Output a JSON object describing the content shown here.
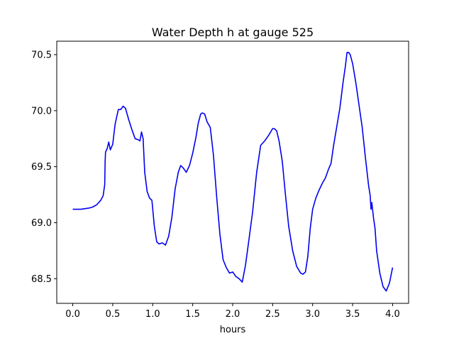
{
  "chart_data": {
    "type": "line",
    "title": "Water Depth h at gauge 525",
    "xlabel": "hours",
    "ylabel": "",
    "xlim": [
      -0.2,
      4.2
    ],
    "ylim": [
      68.28,
      70.62
    ],
    "xticks": [
      0.0,
      0.5,
      1.0,
      1.5,
      2.0,
      2.5,
      3.0,
      3.5,
      4.0
    ],
    "xtick_labels": [
      "0.0",
      "0.5",
      "1.0",
      "1.5",
      "2.0",
      "2.5",
      "3.0",
      "3.5",
      "4.0"
    ],
    "yticks": [
      68.5,
      69.0,
      69.5,
      70.0,
      70.5
    ],
    "ytick_labels": [
      "68.5",
      "69.0",
      "69.5",
      "70.0",
      "70.5"
    ],
    "grid": false,
    "series": [
      {
        "color": "#0000ee",
        "x": [
          0.0,
          0.1,
          0.2,
          0.25,
          0.3,
          0.35,
          0.38,
          0.4,
          0.405,
          0.41,
          0.43,
          0.45,
          0.47,
          0.5,
          0.53,
          0.57,
          0.6,
          0.63,
          0.66,
          0.7,
          0.74,
          0.78,
          0.82,
          0.84,
          0.86,
          0.88,
          0.9,
          0.93,
          0.96,
          0.99,
          1.02,
          1.05,
          1.08,
          1.12,
          1.16,
          1.2,
          1.24,
          1.28,
          1.32,
          1.35,
          1.38,
          1.42,
          1.46,
          1.5,
          1.54,
          1.57,
          1.6,
          1.62,
          1.65,
          1.68,
          1.72,
          1.76,
          1.8,
          1.84,
          1.88,
          1.92,
          1.96,
          2.0,
          2.04,
          2.08,
          2.12,
          2.16,
          2.2,
          2.25,
          2.3,
          2.35,
          2.4,
          2.45,
          2.5,
          2.52,
          2.55,
          2.58,
          2.62,
          2.66,
          2.7,
          2.75,
          2.8,
          2.85,
          2.88,
          2.91,
          2.94,
          2.97,
          3.0,
          3.04,
          3.08,
          3.12,
          3.16,
          3.2,
          3.23,
          3.26,
          3.3,
          3.34,
          3.38,
          3.41,
          3.43,
          3.45,
          3.47,
          3.5,
          3.54,
          3.58,
          3.62,
          3.66,
          3.7,
          3.72,
          3.73,
          3.74,
          3.76,
          3.78,
          3.8,
          3.84,
          3.88,
          3.92,
          3.96,
          4.0
        ],
        "y": [
          69.12,
          69.12,
          69.13,
          69.14,
          69.16,
          69.2,
          69.24,
          69.34,
          69.55,
          69.63,
          69.66,
          69.72,
          69.65,
          69.7,
          69.88,
          70.01,
          70.01,
          70.04,
          70.02,
          69.92,
          69.83,
          69.75,
          69.74,
          69.73,
          69.81,
          69.75,
          69.45,
          69.28,
          69.22,
          69.2,
          68.97,
          68.83,
          68.81,
          68.82,
          68.8,
          68.88,
          69.05,
          69.3,
          69.45,
          69.51,
          69.49,
          69.45,
          69.51,
          69.62,
          69.76,
          69.89,
          69.97,
          69.98,
          69.97,
          69.9,
          69.85,
          69.6,
          69.23,
          68.9,
          68.67,
          68.6,
          68.55,
          68.56,
          68.52,
          68.5,
          68.47,
          68.62,
          68.83,
          69.1,
          69.45,
          69.69,
          69.73,
          69.78,
          69.84,
          69.84,
          69.82,
          69.73,
          69.55,
          69.25,
          68.97,
          68.75,
          68.61,
          68.55,
          68.54,
          68.56,
          68.7,
          68.95,
          69.12,
          69.22,
          69.29,
          69.35,
          69.4,
          69.48,
          69.53,
          69.68,
          69.85,
          70.02,
          70.25,
          70.4,
          70.52,
          70.52,
          70.5,
          70.42,
          70.25,
          70.05,
          69.85,
          69.58,
          69.33,
          69.24,
          69.12,
          69.18,
          69.05,
          68.95,
          68.75,
          68.55,
          68.43,
          68.39,
          68.46,
          68.6
        ]
      }
    ]
  }
}
